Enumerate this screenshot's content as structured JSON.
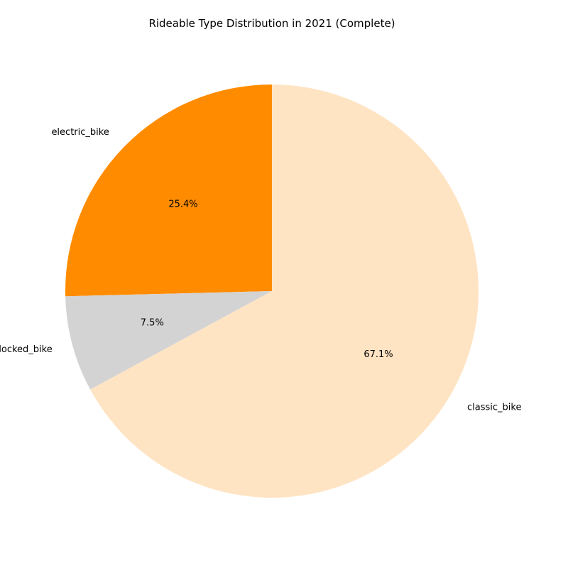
{
  "chart_data": {
    "type": "pie",
    "title": "Rideable Type Distribution in 2021 (Complete)",
    "start_angle_deg": 90,
    "direction": "counterclockwise",
    "slices": [
      {
        "label": "electric_bike",
        "value": 25.4,
        "pct_label": "25.4%",
        "color": "#FF8C00"
      },
      {
        "label": "docked_bike",
        "value": 7.5,
        "pct_label": "7.5%",
        "color": "#D3D3D3"
      },
      {
        "label": "classic_bike",
        "value": 67.1,
        "pct_label": "67.1%",
        "color": "#FFE4C4"
      }
    ]
  }
}
